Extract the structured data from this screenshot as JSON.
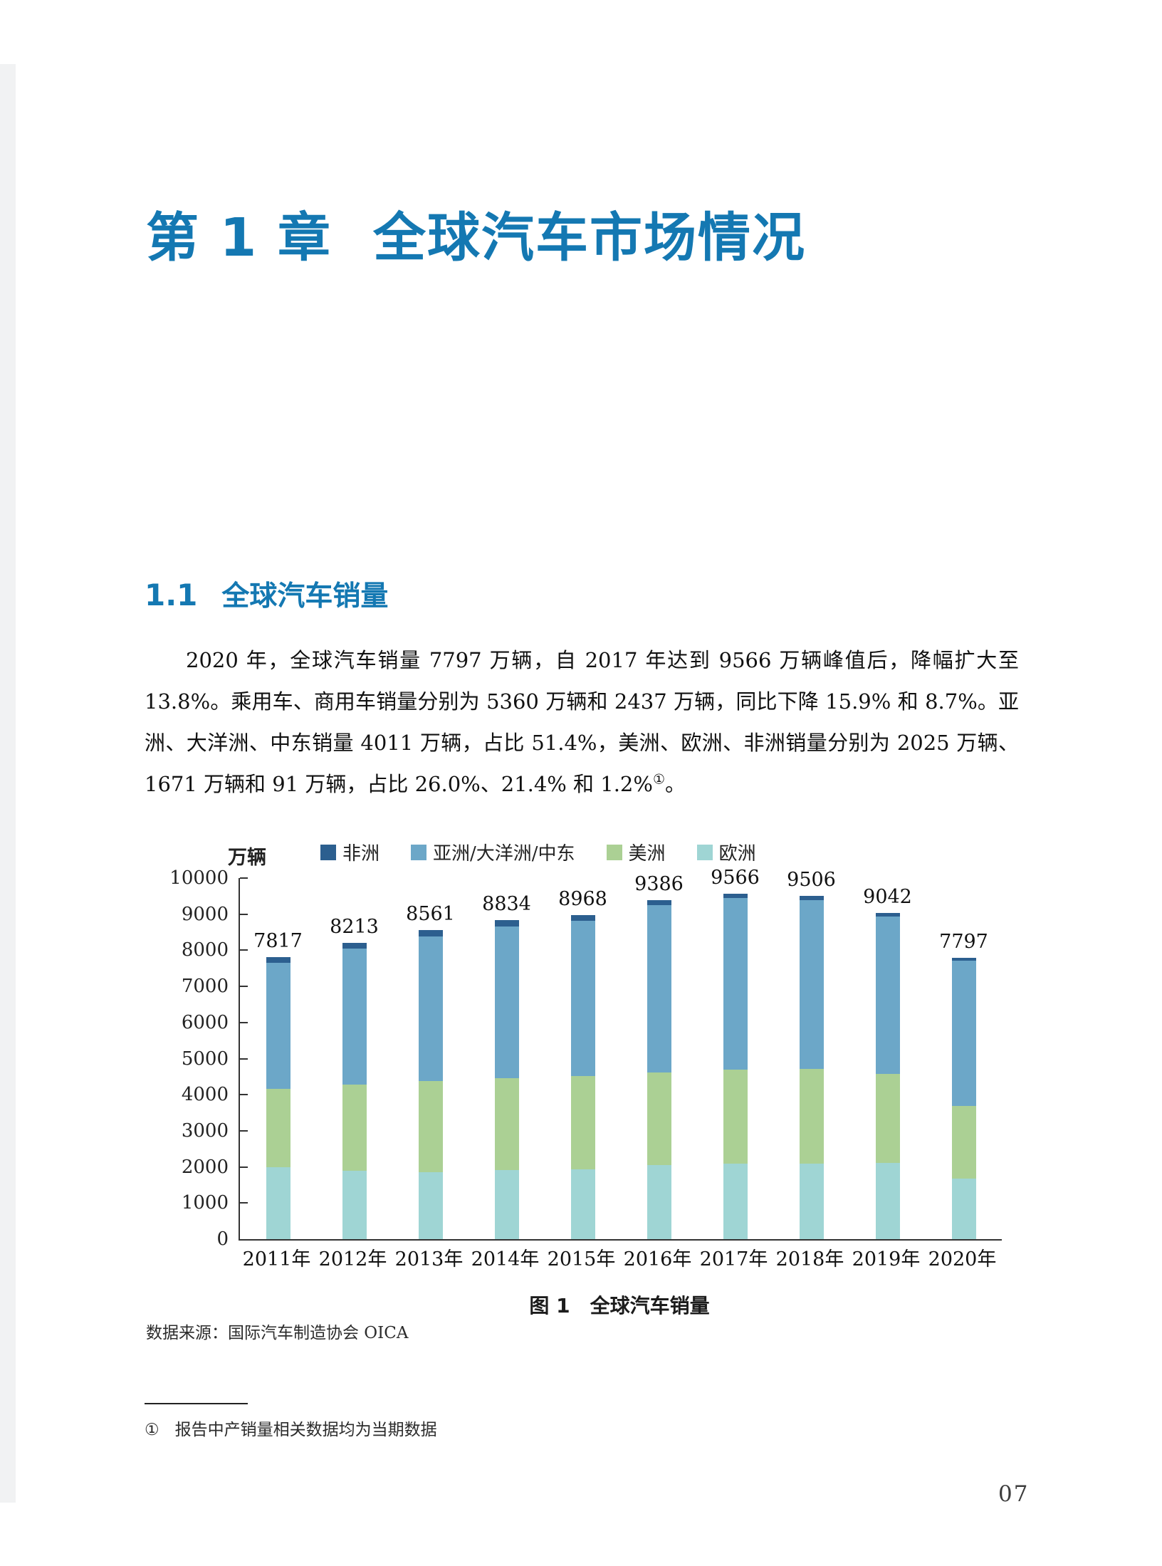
{
  "accent_color": "#1478b2",
  "chapter": {
    "label": "第 1 章",
    "title": "全球汽车市场情况"
  },
  "section": {
    "number": "1.1",
    "title": "全球汽车销量"
  },
  "paragraph": {
    "body": "2020 年，全球汽车销量 7797 万辆，自 2017 年达到 9566 万辆峰值后，降幅扩大至 13.8%。乘用车、商用车销量分别为 5360 万辆和 2437 万辆，同比下降 15.9% 和 8.7%。亚洲、大洋洲、中东销量 4011 万辆，占比 51.4%，美洲、欧洲、非洲销量分别为 2025 万辆、1671 万辆和 91 万辆，占比 26.0%、21.4% 和 1.2%",
    "footnote_ref": "①",
    "closing": "。"
  },
  "chart": {
    "unit_label": "万辆",
    "caption": "图 1　全球汽车销量",
    "source": "数据来源：国际汽车制造协会 OICA",
    "chart_data": {
      "type": "bar",
      "stacked": true,
      "categories": [
        "2011年",
        "2012年",
        "2013年",
        "2014年",
        "2015年",
        "2016年",
        "2017年",
        "2018年",
        "2019年",
        "2020年"
      ],
      "series": [
        {
          "name": "欧洲",
          "color": "#9fd5d4",
          "values": [
            2000,
            1890,
            1860,
            1910,
            1940,
            2050,
            2090,
            2100,
            2110,
            1671
          ]
        },
        {
          "name": "美洲",
          "color": "#abd094",
          "values": [
            2170,
            2400,
            2525,
            2545,
            2585,
            2565,
            2610,
            2610,
            2465,
            2025
          ]
        },
        {
          "name": "亚洲/大洋洲/中东",
          "color": "#6ca7c8",
          "values": [
            3492,
            3758,
            4001,
            4199,
            4288,
            4646,
            4746,
            4681,
            4362,
            4011
          ]
        },
        {
          "name": "非洲",
          "color": "#2c5f8f",
          "values": [
            155,
            165,
            175,
            180,
            155,
            125,
            120,
            115,
            105,
            91
          ]
        }
      ],
      "totals": [
        7817,
        8213,
        8561,
        8834,
        8968,
        9386,
        9566,
        9506,
        9042,
        7797
      ],
      "title": "图 1　全球汽车销量",
      "xlabel": "",
      "ylabel": "万辆",
      "ylim": [
        0,
        10000
      ],
      "ytick_step": 1000,
      "grid": false,
      "legend_position": "top"
    }
  },
  "footnote": {
    "marker": "①",
    "text": "报告中产销量相关数据均为当期数据"
  },
  "page_number": "07"
}
